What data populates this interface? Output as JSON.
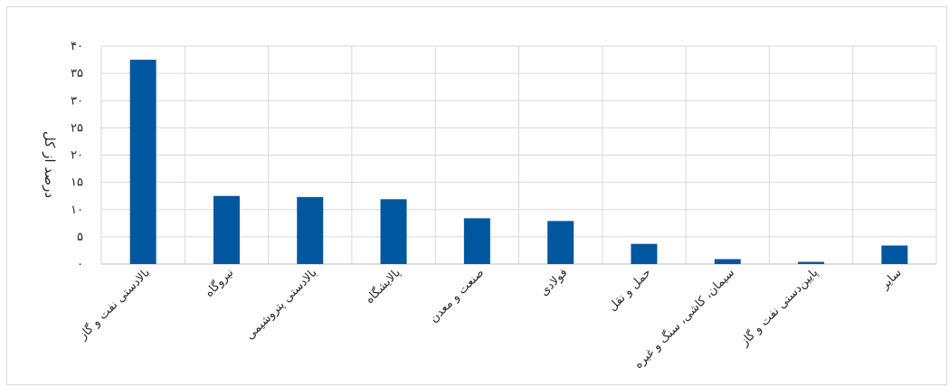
{
  "chart_data": {
    "type": "bar",
    "ylabel": "درصد از کل",
    "ylim": [
      0,
      40
    ],
    "y_ticks": [
      0,
      5,
      10,
      15,
      20,
      25,
      30,
      35,
      40
    ],
    "y_tick_labels": [
      "۰",
      "۵",
      "۱۰",
      "۱۵",
      "۲۰",
      "۲۵",
      "۳۰",
      "۳۵",
      "۴۰"
    ],
    "grid": true,
    "legend": "none",
    "bar_color": "#0057a0",
    "categories": [
      "بالادستی نفت و گاز",
      "نیروگاه",
      "بالادستی پتروشیمی",
      "پالایشگاه",
      "صنعت و معدن",
      "فولادی",
      "حمل و نقل",
      "سیمان، کاشی، سنگ و غیره",
      "پایین‌دستی نفت و گاز",
      "سایر"
    ],
    "values": [
      37.5,
      12.5,
      12.3,
      11.9,
      8.4,
      7.9,
      3.7,
      0.9,
      0.4,
      3.4
    ]
  }
}
